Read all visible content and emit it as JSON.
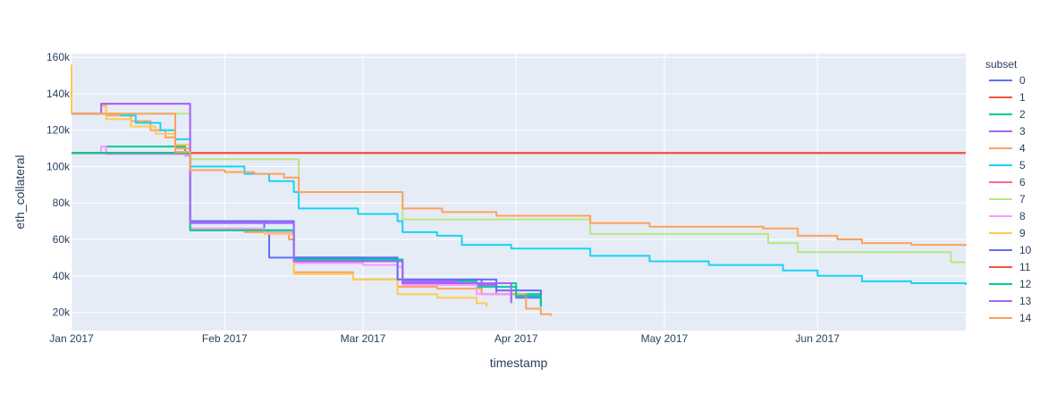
{
  "chart_data": {
    "type": "line",
    "line_shape": "step",
    "xlabel": "timestamp",
    "ylabel": "eth_collateral",
    "xlim": [
      "2017-01-01",
      "2017-07-01"
    ],
    "ylim": [
      10000,
      162000
    ],
    "x_ticks": [
      "2017-01-01",
      "2017-02-01",
      "2017-03-01",
      "2017-04-01",
      "2017-05-01",
      "2017-06-01"
    ],
    "x_tick_labels": [
      "Jan 2017",
      "Feb 2017",
      "Mar 2017",
      "Apr 2017",
      "May 2017",
      "Jun 2017"
    ],
    "y_ticks": [
      20000,
      40000,
      60000,
      80000,
      100000,
      120000,
      140000,
      160000
    ],
    "y_tick_labels": [
      "20k",
      "40k",
      "60k",
      "80k",
      "100k",
      "120k",
      "140k",
      "160k"
    ],
    "grid": true,
    "legend": {
      "title": "subset",
      "placement": "right"
    },
    "series": [
      {
        "name": "0",
        "color": "#636efa",
        "points": [
          [
            "2017-01-01",
            107500
          ],
          [
            "2017-01-08",
            107000
          ],
          [
            "2017-01-24",
            106000
          ],
          [
            "2017-01-25",
            70000
          ],
          [
            "2017-02-09",
            65000
          ],
          [
            "2017-02-10",
            50000
          ],
          [
            "2017-03-01",
            48000
          ],
          [
            "2017-03-08",
            38000
          ],
          [
            "2017-03-25",
            30000
          ],
          [
            "2017-04-01",
            28000
          ],
          [
            "2017-04-06",
            24000
          ]
        ]
      },
      {
        "name": "1",
        "color": "#EF553B",
        "points": [
          [
            "2017-01-01",
            107500
          ],
          [
            "2017-07-01",
            107500
          ]
        ]
      },
      {
        "name": "2",
        "color": "#00cc96",
        "points": [
          [
            "2017-01-01",
            107500
          ],
          [
            "2017-01-08",
            111000
          ],
          [
            "2017-01-24",
            107000
          ],
          [
            "2017-01-25",
            65000
          ],
          [
            "2017-02-14",
            63000
          ],
          [
            "2017-02-15",
            50000
          ],
          [
            "2017-03-08",
            49000
          ],
          [
            "2017-03-09",
            37000
          ],
          [
            "2017-03-24",
            34000
          ],
          [
            "2017-04-01",
            30000
          ],
          [
            "2017-04-06",
            25000
          ]
        ]
      },
      {
        "name": "3",
        "color": "#ab63fa",
        "points": [
          [
            "2017-01-01",
            129000
          ],
          [
            "2017-01-07",
            134500
          ],
          [
            "2017-01-24",
            134500
          ],
          [
            "2017-01-25",
            70000
          ],
          [
            "2017-02-14",
            70000
          ],
          [
            "2017-02-15",
            49000
          ],
          [
            "2017-03-08",
            49000
          ],
          [
            "2017-03-09",
            37000
          ],
          [
            "2017-03-20",
            35000
          ],
          [
            "2017-03-28",
            30000
          ],
          [
            "2017-03-31",
            26000
          ]
        ]
      },
      {
        "name": "4",
        "color": "#FFA15A",
        "points": [
          [
            "2017-01-01",
            129000
          ],
          [
            "2017-01-07",
            134000
          ],
          [
            "2017-01-08",
            128000
          ],
          [
            "2017-01-13",
            125000
          ],
          [
            "2017-01-17",
            120000
          ],
          [
            "2017-01-20",
            116000
          ],
          [
            "2017-01-22",
            110000
          ],
          [
            "2017-01-25",
            66000
          ],
          [
            "2017-02-05",
            64000
          ],
          [
            "2017-02-14",
            60000
          ],
          [
            "2017-02-15",
            42000
          ],
          [
            "2017-02-27",
            38000
          ],
          [
            "2017-03-08",
            34000
          ],
          [
            "2017-03-16",
            33000
          ],
          [
            "2017-03-25",
            30000
          ],
          [
            "2017-04-03",
            22000
          ],
          [
            "2017-04-06",
            19000
          ],
          [
            "2017-04-08",
            18000
          ]
        ]
      },
      {
        "name": "5",
        "color": "#19d3f3",
        "points": [
          [
            "2017-01-01",
            129000
          ],
          [
            "2017-01-11",
            128000
          ],
          [
            "2017-01-14",
            124000
          ],
          [
            "2017-01-19",
            120000
          ],
          [
            "2017-01-22",
            115000
          ],
          [
            "2017-01-25",
            100000
          ],
          [
            "2017-02-05",
            96000
          ],
          [
            "2017-02-10",
            92000
          ],
          [
            "2017-02-15",
            86000
          ],
          [
            "2017-02-16",
            77000
          ],
          [
            "2017-02-28",
            74000
          ],
          [
            "2017-03-08",
            70000
          ],
          [
            "2017-03-09",
            64000
          ],
          [
            "2017-03-16",
            62000
          ],
          [
            "2017-03-21",
            57000
          ],
          [
            "2017-03-31",
            55000
          ],
          [
            "2017-04-15",
            55000
          ],
          [
            "2017-04-16",
            51000
          ],
          [
            "2017-04-28",
            48000
          ],
          [
            "2017-05-10",
            46000
          ],
          [
            "2017-05-25",
            43000
          ],
          [
            "2017-06-01",
            40000
          ],
          [
            "2017-06-10",
            37000
          ],
          [
            "2017-06-20",
            36000
          ],
          [
            "2017-07-01",
            35000
          ]
        ]
      },
      {
        "name": "6",
        "color": "#FF6692",
        "points": [
          [
            "2017-01-01",
            107500
          ],
          [
            "2017-07-01",
            107500
          ]
        ]
      },
      {
        "name": "7",
        "color": "#B6E880",
        "points": [
          [
            "2017-01-01",
            129000
          ],
          [
            "2017-01-24",
            129000
          ],
          [
            "2017-01-25",
            104000
          ],
          [
            "2017-02-15",
            104000
          ],
          [
            "2017-02-16",
            86000
          ],
          [
            "2017-03-08",
            86000
          ],
          [
            "2017-03-09",
            71000
          ],
          [
            "2017-04-15",
            71000
          ],
          [
            "2017-04-16",
            63000
          ],
          [
            "2017-05-21",
            63000
          ],
          [
            "2017-05-22",
            58000
          ],
          [
            "2017-05-28",
            53000
          ],
          [
            "2017-06-27",
            53000
          ],
          [
            "2017-06-28",
            47500
          ],
          [
            "2017-07-01",
            47500
          ]
        ]
      },
      {
        "name": "8",
        "color": "#FF97FF",
        "points": [
          [
            "2017-01-01",
            107500
          ],
          [
            "2017-01-07",
            111000
          ],
          [
            "2017-01-08",
            107000
          ],
          [
            "2017-01-24",
            106000
          ],
          [
            "2017-01-25",
            66000
          ],
          [
            "2017-02-09",
            64000
          ],
          [
            "2017-02-15",
            47000
          ],
          [
            "2017-03-01",
            46000
          ],
          [
            "2017-03-08",
            45000
          ],
          [
            "2017-03-09",
            35000
          ],
          [
            "2017-03-24",
            30000
          ],
          [
            "2017-03-31",
            26000
          ]
        ]
      },
      {
        "name": "9",
        "color": "#FECB52",
        "points": [
          [
            "2017-01-01",
            156000
          ],
          [
            "2017-01-01",
            129000
          ],
          [
            "2017-01-07",
            133000
          ],
          [
            "2017-01-08",
            126000
          ],
          [
            "2017-01-13",
            122000
          ],
          [
            "2017-01-18",
            118000
          ],
          [
            "2017-01-22",
            112000
          ],
          [
            "2017-01-25",
            65000
          ],
          [
            "2017-02-09",
            63000
          ],
          [
            "2017-02-15",
            41000
          ],
          [
            "2017-02-27",
            38000
          ],
          [
            "2017-03-08",
            30000
          ],
          [
            "2017-03-16",
            28000
          ],
          [
            "2017-03-24",
            25000
          ],
          [
            "2017-03-26",
            23000
          ]
        ]
      },
      {
        "name": "10",
        "color": "#636efa",
        "points": [
          [
            "2017-01-01",
            107500
          ],
          [
            "2017-01-25",
            70000
          ],
          [
            "2017-02-15",
            50000
          ],
          [
            "2017-03-08",
            38000
          ],
          [
            "2017-03-28",
            32000
          ],
          [
            "2017-04-06",
            23000
          ]
        ]
      },
      {
        "name": "11",
        "color": "#EF553B",
        "points": [
          [
            "2017-01-01",
            107500
          ],
          [
            "2017-07-01",
            107500
          ]
        ]
      },
      {
        "name": "12",
        "color": "#00cc96",
        "points": [
          [
            "2017-01-01",
            107500
          ],
          [
            "2017-01-25",
            65000
          ],
          [
            "2017-02-15",
            49000
          ],
          [
            "2017-03-09",
            36000
          ],
          [
            "2017-04-01",
            29000
          ],
          [
            "2017-04-06",
            23000
          ]
        ]
      },
      {
        "name": "13",
        "color": "#ab63fa",
        "points": [
          [
            "2017-01-01",
            129000
          ],
          [
            "2017-01-07",
            134500
          ],
          [
            "2017-01-25",
            69000
          ],
          [
            "2017-02-15",
            48000
          ],
          [
            "2017-03-09",
            36000
          ],
          [
            "2017-03-31",
            25000
          ]
        ]
      },
      {
        "name": "14",
        "color": "#FFA15A",
        "points": [
          [
            "2017-01-01",
            129000
          ],
          [
            "2017-01-22",
            108000
          ],
          [
            "2017-01-25",
            98000
          ],
          [
            "2017-02-01",
            97000
          ],
          [
            "2017-02-07",
            96000
          ],
          [
            "2017-02-13",
            94000
          ],
          [
            "2017-02-16",
            86000
          ],
          [
            "2017-03-08",
            86000
          ],
          [
            "2017-03-09",
            77000
          ],
          [
            "2017-03-17",
            75000
          ],
          [
            "2017-03-28",
            73000
          ],
          [
            "2017-04-15",
            73000
          ],
          [
            "2017-04-16",
            69000
          ],
          [
            "2017-04-28",
            67000
          ],
          [
            "2017-05-21",
            66000
          ],
          [
            "2017-05-28",
            62000
          ],
          [
            "2017-06-05",
            60000
          ],
          [
            "2017-06-10",
            58000
          ],
          [
            "2017-06-20",
            57000
          ],
          [
            "2017-07-01",
            56500
          ]
        ]
      }
    ]
  }
}
